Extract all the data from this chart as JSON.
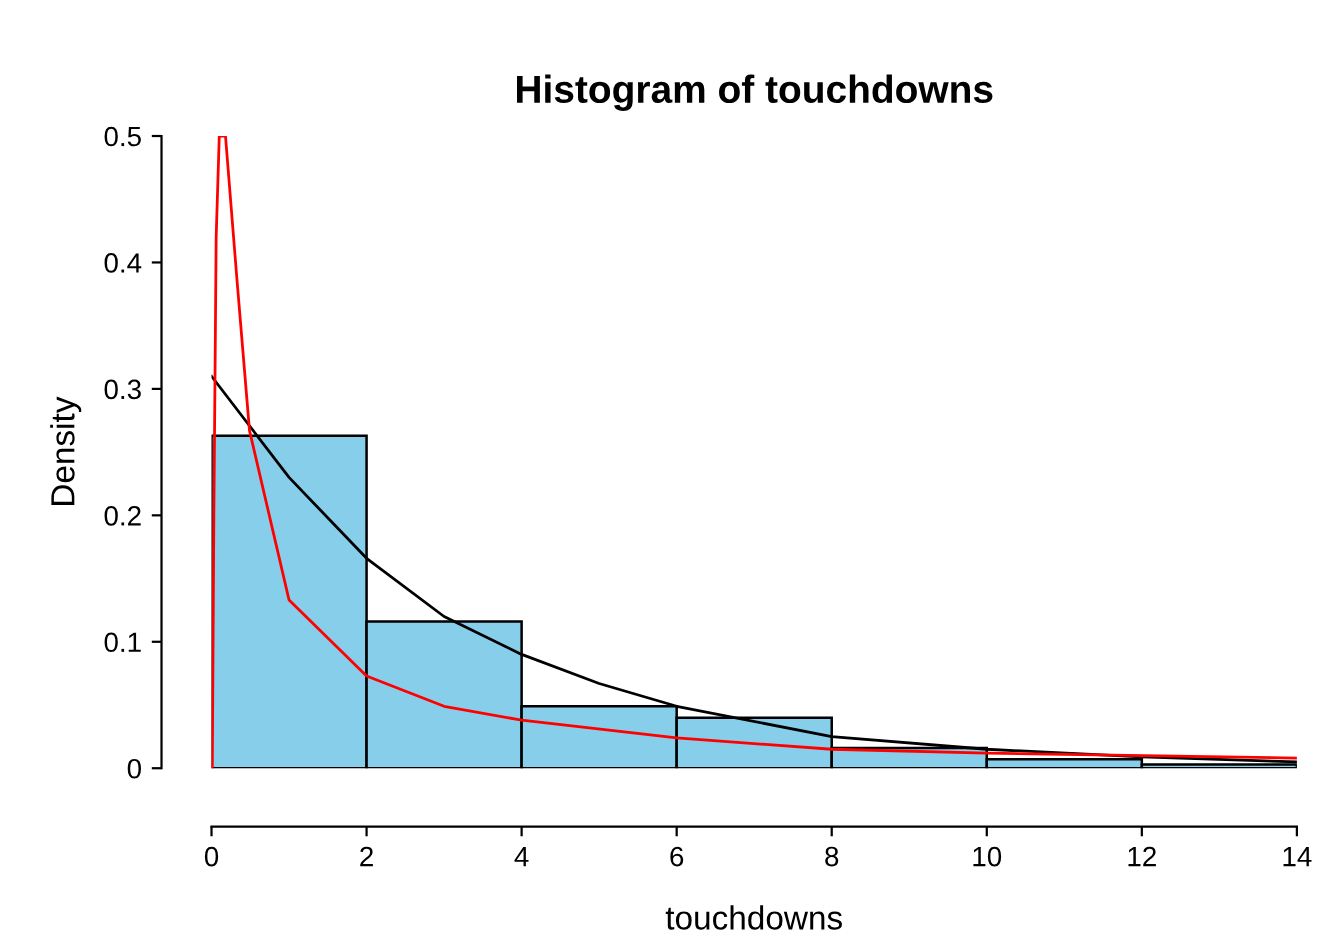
{
  "chart_data": {
    "type": "histogram",
    "title": "Histogram of touchdowns",
    "xlabel": "touchdowns",
    "ylabel": "Density",
    "bins": [
      0,
      2,
      4,
      6,
      8,
      10,
      12,
      14
    ],
    "values": [
      0.263,
      0.116,
      0.049,
      0.04,
      0.016,
      0.007,
      0.003
    ],
    "color": "#87ceeb",
    "series": [
      {
        "type": "line",
        "color": "#000000",
        "x": [
          0,
          1,
          2,
          3,
          4,
          5,
          6,
          8,
          10,
          12,
          14
        ],
        "values": [
          0.31,
          0.23,
          0.166,
          0.12,
          0.09,
          0.067,
          0.049,
          0.025,
          0.015,
          0.009,
          0.005
        ]
      },
      {
        "type": "line",
        "color": "#ff0000",
        "x": [
          0.01,
          0.03,
          0.06,
          0.1,
          0.18,
          0.33,
          0.49,
          1,
          2,
          3,
          4,
          6,
          8,
          10,
          14
        ],
        "values": [
          0,
          0.2,
          0.42,
          0.5,
          0.5,
          0.385,
          0.267,
          0.133,
          0.073,
          0.049,
          0.038,
          0.024,
          0.015,
          0.012,
          0.008
        ]
      }
    ],
    "xlim": [
      0,
      14
    ],
    "ylim": [
      0,
      0.5
    ],
    "xticks": [
      0,
      2,
      4,
      6,
      8,
      10,
      12,
      14
    ],
    "yticks": [
      0,
      0.1,
      0.2,
      0.3,
      0.4,
      0.5
    ],
    "grid": false,
    "legend": false
  }
}
